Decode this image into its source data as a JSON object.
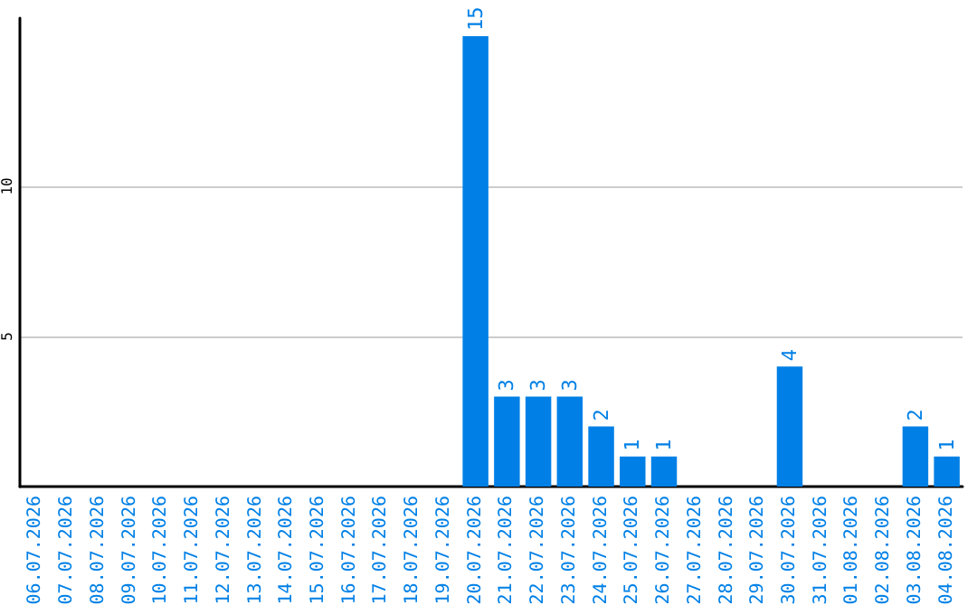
{
  "chart_data": {
    "type": "bar",
    "categories": [
      "06.07.2026",
      "07.07.2026",
      "08.07.2026",
      "09.07.2026",
      "10.07.2026",
      "11.07.2026",
      "12.07.2026",
      "13.07.2026",
      "14.07.2026",
      "15.07.2026",
      "16.07.2026",
      "17.07.2026",
      "18.07.2026",
      "19.07.2026",
      "20.07.2026",
      "21.07.2026",
      "22.07.2026",
      "23.07.2026",
      "24.07.2026",
      "25.07.2026",
      "26.07.2026",
      "27.07.2026",
      "28.07.2026",
      "29.07.2026",
      "30.07.2026",
      "31.07.2026",
      "01.08.2026",
      "02.08.2026",
      "03.08.2026",
      "04.08.2026"
    ],
    "values": [
      0,
      0,
      0,
      0,
      0,
      0,
      0,
      0,
      0,
      0,
      0,
      0,
      0,
      0,
      15,
      3,
      3,
      3,
      2,
      1,
      1,
      0,
      0,
      0,
      4,
      0,
      0,
      0,
      2,
      1
    ],
    "value_labels": [
      null,
      null,
      null,
      null,
      null,
      null,
      null,
      null,
      null,
      null,
      null,
      null,
      null,
      null,
      "15",
      "3",
      "3",
      "3",
      "2",
      "1",
      "1",
      null,
      null,
      null,
      "4",
      null,
      null,
      null,
      "2",
      "1"
    ],
    "color": "#0080e6",
    "ylim": [
      0,
      15.6
    ],
    "yticks": [
      5,
      10
    ],
    "grid": "y"
  }
}
